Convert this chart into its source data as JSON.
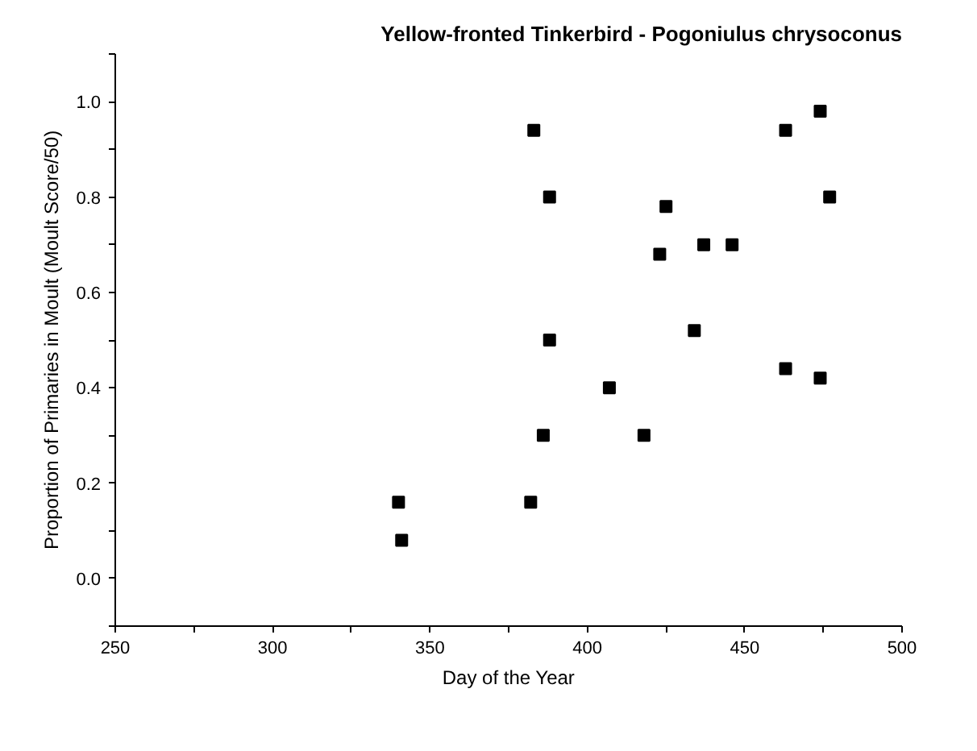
{
  "chart_data": {
    "type": "scatter",
    "title": "Yellow-fronted Tinkerbird - Pogoniulus chrysoconus",
    "xlabel": "Day of the Year",
    "ylabel": "Proportion of Primaries in Moult (Moult Score/50)",
    "x": [
      340,
      341,
      383,
      388,
      388,
      386,
      382,
      407,
      418,
      423,
      425,
      437,
      446,
      434,
      463,
      463,
      474,
      477,
      474
    ],
    "values": [
      0.16,
      0.08,
      0.94,
      0.8,
      0.5,
      0.3,
      0.16,
      0.4,
      0.3,
      0.68,
      0.78,
      0.7,
      0.7,
      0.52,
      0.94,
      0.44,
      0.98,
      0.8,
      0.42
    ],
    "color": "#000000",
    "marker": "square",
    "grid": false,
    "xlim": [
      250,
      500
    ],
    "ylim": [
      -0.1,
      1.1
    ],
    "xticks": [
      250,
      {
        "value": 275,
        "label": null
      },
      300,
      {
        "value": 325,
        "label": null
      },
      350,
      {
        "value": 375,
        "label": null
      },
      400,
      {
        "value": 425,
        "label": null
      },
      450,
      {
        "value": 475,
        "label": null
      },
      500
    ],
    "yticks": [
      {
        "value": -0.1,
        "label": null
      },
      {
        "value": 0,
        "label": "0.0"
      },
      {
        "value": 0.1,
        "label": null
      },
      0.2,
      {
        "value": 0.3,
        "label": null
      },
      0.4,
      {
        "value": 0.5,
        "label": null
      },
      0.6,
      {
        "value": 0.7,
        "label": null
      },
      0.8,
      {
        "value": 0.9,
        "label": null
      },
      {
        "value": 1,
        "label": "1.0"
      },
      {
        "value": 1.1,
        "label": null
      }
    ]
  }
}
